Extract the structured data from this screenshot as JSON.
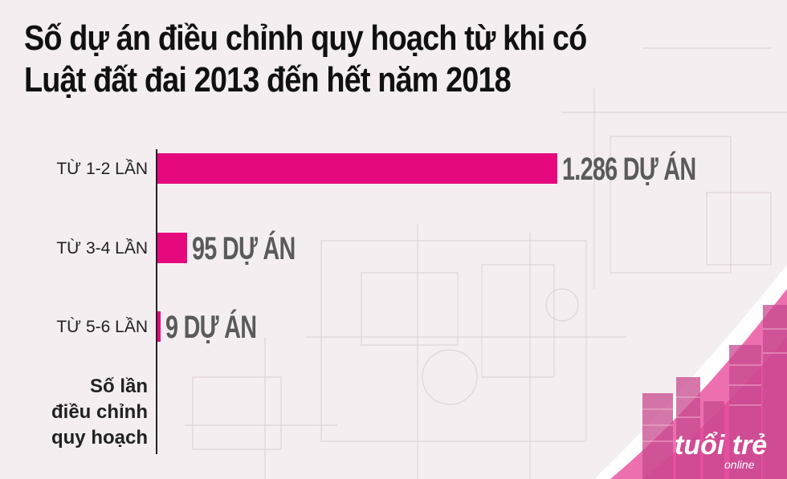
{
  "title": {
    "line1": "Số dự án điều chỉnh quy hoạch từ khi có",
    "line2": "Luật đất đai 2013 đến hết năm 2018"
  },
  "chart_data": {
    "type": "bar",
    "orientation": "horizontal",
    "title": "Số dự án điều chỉnh quy hoạch từ khi có Luật đất đai 2013 đến hết năm 2018",
    "categories": [
      "TỪ 1-2 LẦN",
      "TỪ 3-4 LẦN",
      "TỪ 5-6 LẦN"
    ],
    "values": [
      1286,
      95,
      9
    ],
    "value_labels": [
      "1.286 DỰ ÁN",
      "95 DỰ ÁN",
      "9 DỰ ÁN"
    ],
    "axis_title_lines": [
      "Số lần",
      "điều chỉnh",
      "quy hoạch"
    ],
    "xlim": [
      0,
      1286
    ],
    "grid": false,
    "bar_color": "#e6097e"
  },
  "logo": {
    "name": "tuoitre-logo",
    "text_main": "tuổi trẻ",
    "text_sub": "online"
  },
  "colors": {
    "accent": "#e6097e",
    "background": "#f5eef1",
    "value_text": "#5a5a5a"
  }
}
